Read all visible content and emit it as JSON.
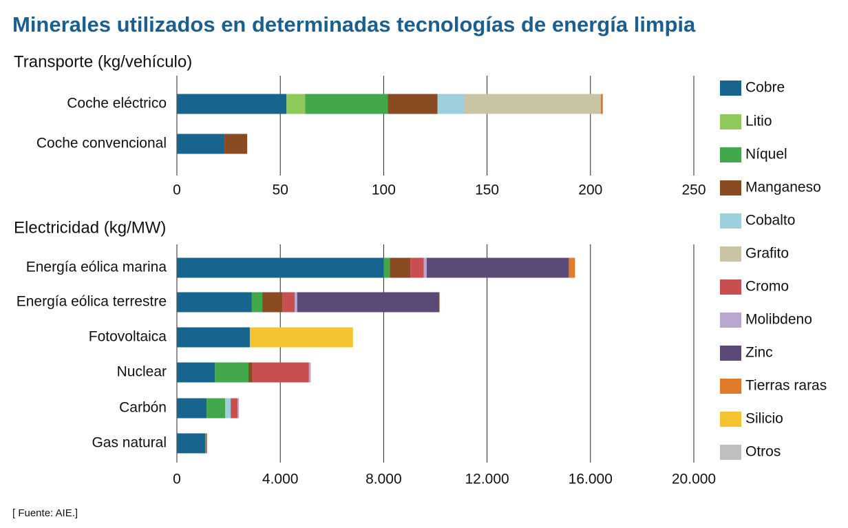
{
  "title": "Minerales utilizados en determinadas tecnologías de energía limpia",
  "source": "[ Fuente: AIE.]",
  "legend": {
    "entries": [
      {
        "name": "Cobre",
        "color": "#17658f"
      },
      {
        "name": "Litio",
        "color": "#8fc95c"
      },
      {
        "name": "Níquel",
        "color": "#42a84b"
      },
      {
        "name": "Manganeso",
        "color": "#8a4a22"
      },
      {
        "name": "Cobalto",
        "color": "#9ecfdd"
      },
      {
        "name": "Grafito",
        "color": "#c9c5a4"
      },
      {
        "name": "Cromo",
        "color": "#c84f50"
      },
      {
        "name": "Molibdeno",
        "color": "#b9a7cf"
      },
      {
        "name": "Zinc",
        "color": "#5b4a78"
      },
      {
        "name": "Tierras raras",
        "color": "#e07b2b"
      },
      {
        "name": "Silicio",
        "color": "#f5c332"
      },
      {
        "name": "Otros",
        "color": "#bfbfbf"
      }
    ]
  },
  "chart_data": [
    {
      "type": "bar",
      "orientation": "horizontal",
      "stacked": true,
      "title": "Transporte (kg/vehículo)",
      "categories": [
        "Coche eléctrico",
        "Coche convencional"
      ],
      "series": [
        {
          "name": "Cobre",
          "color": "#17658f",
          "values": [
            53,
            23
          ]
        },
        {
          "name": "Litio",
          "color": "#8fc95c",
          "values": [
            9,
            null
          ]
        },
        {
          "name": "Níquel",
          "color": "#42a84b",
          "values": [
            40,
            null
          ]
        },
        {
          "name": "Manganeso",
          "color": "#8a4a22",
          "values": [
            24,
            11
          ]
        },
        {
          "name": "Cobalto",
          "color": "#9ecfdd",
          "values": [
            13,
            null
          ]
        },
        {
          "name": "Grafito",
          "color": "#c9c5a4",
          "values": [
            66,
            null
          ]
        },
        {
          "name": "Tierras raras",
          "color": "#e07b2b",
          "values": [
            1,
            null
          ]
        }
      ],
      "xlim": [
        0,
        250
      ],
      "xticks": [
        0,
        50,
        100,
        150,
        200,
        250
      ],
      "grid": true
    },
    {
      "type": "bar",
      "orientation": "horizontal",
      "stacked": true,
      "title": "Electricidad (kg/MW)",
      "categories": [
        "Energía eólica marina",
        "Energía eólica terrestre",
        "Fotovoltaica",
        "Nuclear",
        "Carbón",
        "Gas natural"
      ],
      "series": [
        {
          "name": "Cobre",
          "color": "#17658f",
          "values": [
            8000,
            2900,
            2822,
            1473,
            1150,
            1100
          ]
        },
        {
          "name": "Níquel",
          "color": "#42a84b",
          "values": [
            240,
            404,
            null,
            1297,
            721,
            16
          ]
        },
        {
          "name": "Manganeso",
          "color": "#8a4a22",
          "values": [
            790,
            780,
            null,
            148,
            null,
            null
          ]
        },
        {
          "name": "Cobalto",
          "color": "#9ecfdd",
          "values": [
            null,
            null,
            null,
            null,
            210,
            null
          ]
        },
        {
          "name": "Cromo",
          "color": "#c84f50",
          "values": [
            525,
            470,
            null,
            2190,
            266,
            48
          ]
        },
        {
          "name": "Molibdeno",
          "color": "#b9a7cf",
          "values": [
            109,
            99,
            null,
            70,
            53,
            null
          ]
        },
        {
          "name": "Zinc",
          "color": "#5b4a78",
          "values": [
            5500,
            5500,
            null,
            null,
            null,
            null
          ]
        },
        {
          "name": "Tierras raras",
          "color": "#e07b2b",
          "values": [
            239,
            14,
            null,
            null,
            null,
            null
          ]
        },
        {
          "name": "Silicio",
          "color": "#f5c332",
          "values": [
            null,
            null,
            3990,
            null,
            null,
            null
          ]
        }
      ],
      "xlim": [
        0,
        20000
      ],
      "xticks": [
        0,
        {
          "value": 4000,
          "label": "4.000"
        },
        {
          "value": 8000,
          "label": "8.000"
        },
        {
          "value": 12000,
          "label": "12.000"
        },
        {
          "value": 16000,
          "label": "16.000"
        },
        {
          "value": 20000,
          "label": "20.000"
        }
      ],
      "grid": true
    }
  ]
}
